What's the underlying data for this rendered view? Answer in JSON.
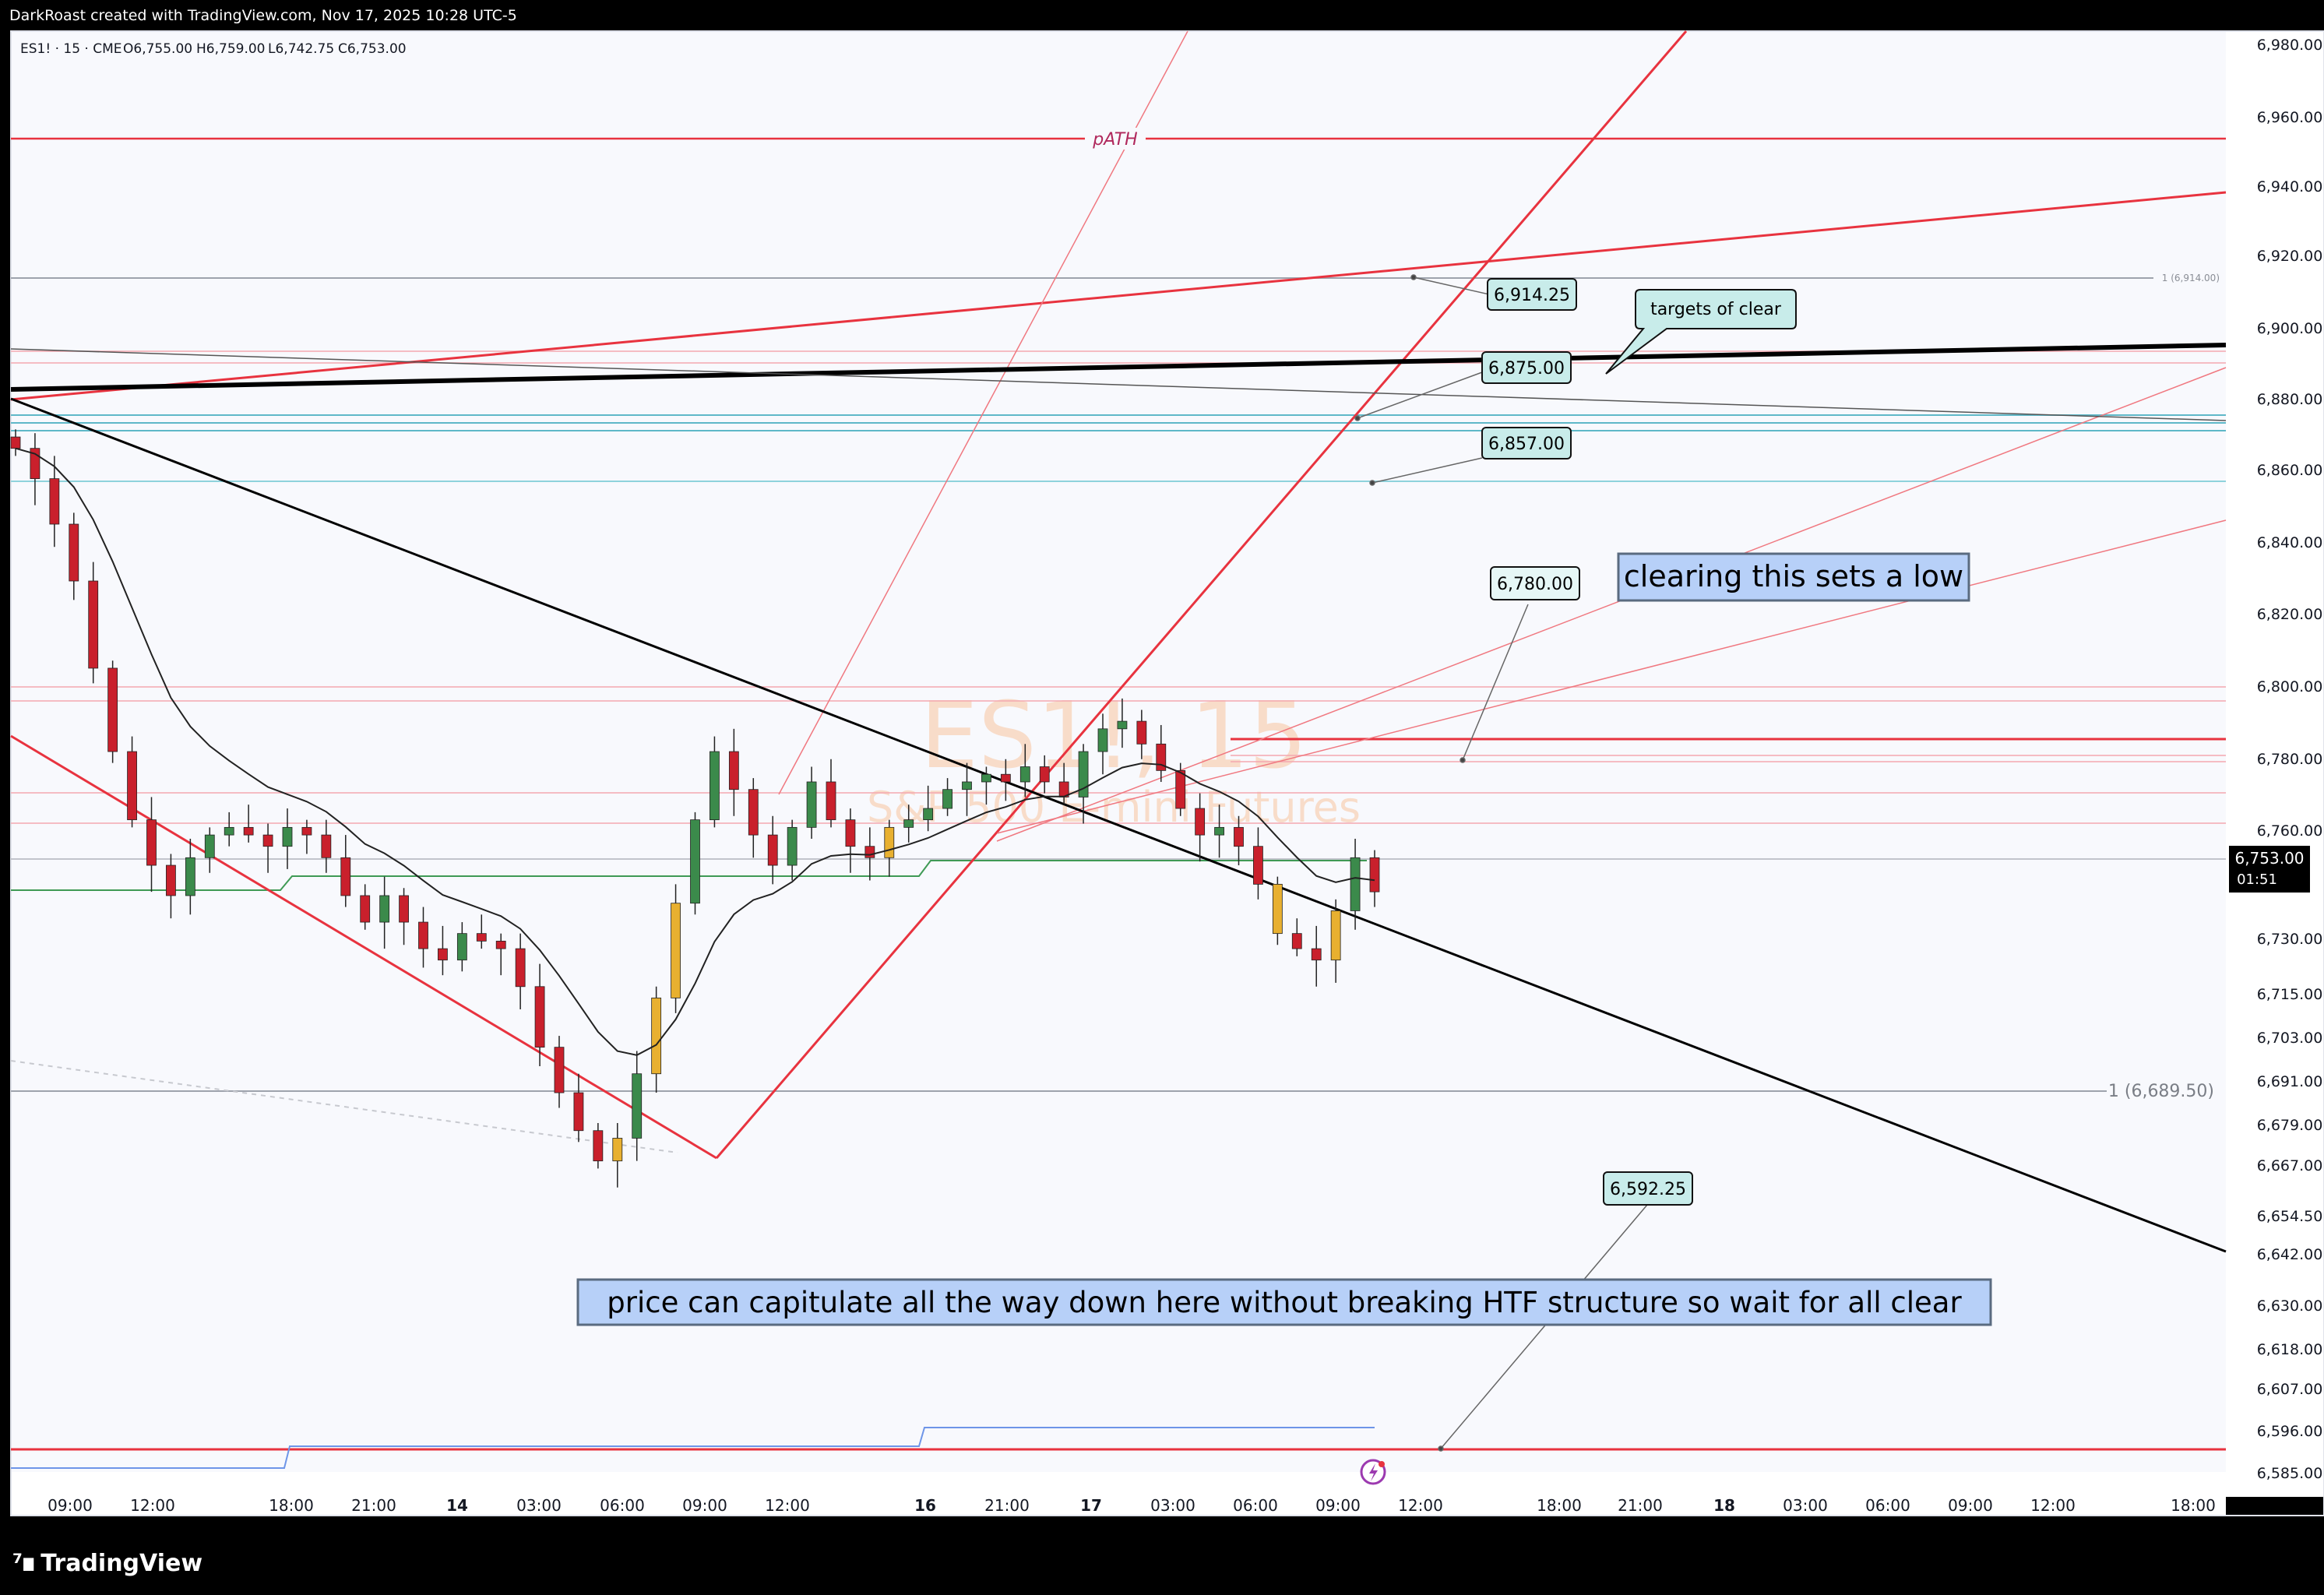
{
  "header": {
    "attribution": "DarkRoast created with TradingView.com, Nov 17, 2025 10:28 UTC-5"
  },
  "legend": {
    "symbol_line": "ES1! · 15 · CME",
    "open": "O6,755.00",
    "high": "H6,759.00",
    "low": "L6,742.75",
    "close": "C6,753.00"
  },
  "watermark": {
    "symbol": "ES1!, 15",
    "description": "S&P 500 E-mini Futures"
  },
  "current_price": {
    "label": "6,753.00",
    "countdown": "01:51"
  },
  "brand": {
    "name": "TradingView"
  },
  "colors": {
    "background": "#f8f9fd",
    "red_line": "#e8333f",
    "black_line": "#000000",
    "cyan_line": "#5fb8c8",
    "green_line": "#3f9a55",
    "blue_line": "#6e95e8",
    "bull_candle": "#3b8a4b",
    "bear_candle": "#c9202c",
    "yellow_candle": "#e8b030",
    "callout_fill": "#c8ecea",
    "note_fill": "#b7d0f8"
  },
  "annotations": {
    "path_label": "pATH",
    "callout_6914": "6,914.25",
    "callout_6875": "6,875.00",
    "callout_6857": "6,857.00",
    "callout_6780": "6,780.00",
    "callout_6592": "6,592.25",
    "targets_note": "targets of clear",
    "note_low": "clearing this sets a low",
    "note_capitulate": "price can capitulate all the way down here without breaking HTF structure so wait for all clear",
    "fib_label_1": "1 (6,689.50)",
    "fib_label_2": "1 (6,914.00)"
  },
  "chart_data": {
    "type": "candlestick",
    "symbol": "ES1!",
    "interval": "15",
    "exchange": "CME",
    "y_axis": {
      "range": [
        6585,
        6980
      ],
      "tick_labels": [
        "6,980.00",
        "6,960.00",
        "6,940.00",
        "6,920.00",
        "6,900.00",
        "6,880.00",
        "6,860.00",
        "6,840.00",
        "6,820.00",
        "6,800.00",
        "6,780.00",
        "6,760.00",
        "6,730.00",
        "6,715.00",
        "6,703.00",
        "6,691.00",
        "6,679.00",
        "6,667.00",
        "6,654.50",
        "6,642.00",
        "6,630.00",
        "6,618.00",
        "6,607.00",
        "6,596.00",
        "6,585.00"
      ]
    },
    "x_axis": {
      "tick_labels": [
        "09:00",
        "12:00",
        "18:00",
        "21:00",
        "14",
        "03:00",
        "06:00",
        "09:00",
        "12:00",
        "16",
        "21:00",
        "17",
        "03:00",
        "06:00",
        "09:00",
        "12:00",
        "18:00",
        "21:00",
        "18",
        "03:00",
        "06:00",
        "09:00",
        "12:00",
        "18:00"
      ]
    },
    "last_ohlc": {
      "open": 6755.0,
      "high": 6759.0,
      "low": 6742.75,
      "close": 6753.0
    },
    "price_path_closes": [
      6870,
      6862,
      6850,
      6835,
      6812,
      6790,
      6772,
      6760,
      6752,
      6762,
      6768,
      6770,
      6768,
      6765,
      6770,
      6768,
      6762,
      6752,
      6745,
      6752,
      6745,
      6738,
      6735,
      6742,
      6740,
      6738,
      6728,
      6712,
      6700,
      6690,
      6682,
      6688,
      6705,
      6725,
      6750,
      6772,
      6790,
      6780,
      6768,
      6760,
      6770,
      6782,
      6772,
      6765,
      6762,
      6770,
      6772,
      6775,
      6780,
      6782,
      6784,
      6782,
      6786,
      6782,
      6778,
      6790,
      6796,
      6798,
      6792,
      6785,
      6775,
      6768,
      6770,
      6765,
      6755,
      6742,
      6738,
      6735,
      6748,
      6762,
      6753
    ],
    "horizontal_levels": [
      6953,
      6914.25,
      6890,
      6878,
      6876,
      6874,
      6857,
      6785,
      6782,
      6780,
      6770,
      6762,
      6752,
      6689.5,
      6592.25
    ],
    "callout_values": [
      6914.25,
      6875.0,
      6857.0,
      6780.0,
      6592.25
    ]
  }
}
